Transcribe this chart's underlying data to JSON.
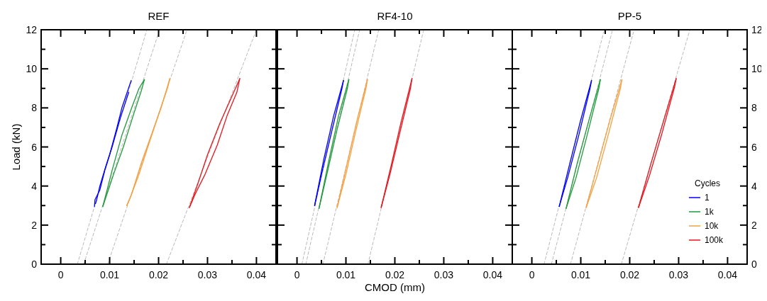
{
  "chart_data": [
    {
      "type": "line",
      "title": "REF",
      "ylabel": "Load (kN)",
      "xlim": [
        -0.004,
        0.044
      ],
      "xticks": [
        0,
        {
          "value": 0.005,
          "label": null
        },
        0.01,
        {
          "value": 0.015,
          "label": null
        },
        0.02,
        {
          "value": 0.025,
          "label": null
        },
        0.03,
        {
          "value": 0.035,
          "label": null
        },
        0.04
      ],
      "ylim": [
        0,
        12
      ],
      "yticks": [
        0,
        {
          "value": 1,
          "label": null
        },
        2,
        {
          "value": 3,
          "label": null
        },
        4,
        {
          "value": 5,
          "label": null
        },
        6,
        {
          "value": 7,
          "label": null
        },
        8,
        {
          "value": 9,
          "label": null
        },
        10,
        {
          "value": 11,
          "label": null
        },
        12
      ],
      "series": [
        {
          "color": "#a6a6a6",
          "line_style": "dashed",
          "x": [
            0.0034,
            0.0176
          ],
          "values": [
            0,
            12
          ]
        },
        {
          "color": "#a6a6a6",
          "line_style": "dashed",
          "x": [
            0.0047,
            0.0202
          ],
          "values": [
            0,
            12
          ]
        },
        {
          "color": "#a6a6a6",
          "line_style": "dashed",
          "x": [
            0.0096,
            0.0258
          ],
          "values": [
            0,
            12
          ]
        },
        {
          "color": "#a6a6a6",
          "line_style": "dashed",
          "x": [
            0.0216,
            0.04
          ],
          "values": [
            0,
            12
          ]
        },
        {
          "color": "#0000ff",
          "x": [
            0.0069,
            0.007,
            0.008,
            0.009,
            0.01,
            0.0115,
            0.0125,
            0.0144
          ],
          "values": [
            2.95,
            3.3,
            3.8,
            4.8,
            5.6,
            7,
            8,
            9.4
          ]
        },
        {
          "color": "#0000ff",
          "x": [
            0.0071,
            0.0073,
            0.008,
            0.0092,
            0.0105,
            0.0122,
            0.0139
          ],
          "values": [
            3.1,
            3.25,
            4,
            5,
            6,
            7.5,
            8.8
          ]
        },
        {
          "color": "#1f9a3a",
          "x": [
            0.0086,
            0.0105,
            0.0125,
            0.0145,
            0.016,
            0.0171
          ],
          "values": [
            2.95,
            4.8,
            6.6,
            8,
            9,
            9.45
          ]
        },
        {
          "color": "#1f9a3a",
          "x": [
            0.0086,
            0.0088,
            0.0108,
            0.0128,
            0.0148,
            0.0165,
            0.0171
          ],
          "values": [
            2.95,
            3.1,
            4.6,
            6,
            7.6,
            8.9,
            9.45
          ]
        },
        {
          "color": "#f7a040",
          "x": [
            0.0135,
            0.0145,
            0.0165,
            0.0185,
            0.0205,
            0.0223
          ],
          "values": [
            3,
            3.6,
            5.2,
            6.6,
            8,
            9.5
          ]
        },
        {
          "color": "#f7a040",
          "x": [
            0.0135,
            0.0142,
            0.016,
            0.0178,
            0.0198,
            0.0218,
            0.0223
          ],
          "values": [
            3,
            3.4,
            4.6,
            6,
            7.5,
            9,
            9.5
          ]
        },
        {
          "color": "#e8141c",
          "x": [
            0.0263,
            0.028,
            0.03,
            0.0325,
            0.035,
            0.0366
          ],
          "values": [
            2.9,
            4.1,
            5.6,
            7.2,
            8.6,
            9.5
          ]
        },
        {
          "color": "#e8141c",
          "x": [
            0.0263,
            0.0275,
            0.0295,
            0.032,
            0.034,
            0.036,
            0.0366
          ],
          "values": [
            2.9,
            3.6,
            4.6,
            6.1,
            7.6,
            8.8,
            9.5
          ]
        }
      ]
    },
    {
      "type": "line",
      "title": "RF4-10",
      "xlabel": "CMOD (mm)",
      "tick_labels": "x",
      "xlim": [
        -0.004,
        0.044
      ],
      "xticks": [
        0,
        {
          "value": 0.005,
          "label": null
        },
        0.01,
        {
          "value": 0.015,
          "label": null
        },
        0.02,
        {
          "value": 0.025,
          "label": null
        },
        0.03,
        {
          "value": 0.035,
          "label": null
        },
        0.04
      ],
      "ylim": [
        0,
        12
      ],
      "yticks": [
        0,
        {
          "value": 1,
          "label": null
        },
        2,
        {
          "value": 3,
          "label": null
        },
        4,
        {
          "value": 5,
          "label": null
        },
        6,
        {
          "value": 7,
          "label": null
        },
        8,
        {
          "value": 9,
          "label": null
        },
        10,
        {
          "value": 11,
          "label": null
        },
        12
      ],
      "series": [
        {
          "color": "#a6a6a6",
          "line_style": "dashed",
          "x": [
            0.001,
            0.0118
          ],
          "values": [
            0,
            12
          ]
        },
        {
          "color": "#a6a6a6",
          "line_style": "dashed",
          "x": [
            0.0018,
            0.0128
          ],
          "values": [
            0,
            12
          ]
        },
        {
          "color": "#a6a6a6",
          "line_style": "dashed",
          "x": [
            0.0053,
            0.0167
          ],
          "values": [
            0,
            12
          ]
        },
        {
          "color": "#a6a6a6",
          "line_style": "dashed",
          "x": [
            0.0145,
            0.0259
          ],
          "values": [
            0,
            12
          ]
        },
        {
          "color": "#0000ff",
          "x": [
            0.0036,
            0.0055,
            0.0075,
            0.0095
          ],
          "values": [
            3,
            5.4,
            7.6,
            9.4
          ]
        },
        {
          "color": "#0000ff",
          "x": [
            0.0036,
            0.0052,
            0.0072,
            0.0092,
            0.0095
          ],
          "values": [
            3,
            4.8,
            6.9,
            9,
            9.4
          ]
        },
        {
          "color": "#1f9a3a",
          "x": [
            0.0045,
            0.0065,
            0.0085,
            0.0106
          ],
          "values": [
            2.85,
            5.3,
            7.6,
            9.45
          ]
        },
        {
          "color": "#1f9a3a",
          "x": [
            0.0045,
            0.0062,
            0.0082,
            0.0103,
            0.0106
          ],
          "values": [
            2.85,
            4.7,
            6.9,
            9,
            9.45
          ]
        },
        {
          "color": "#f7a040",
          "x": [
            0.0082,
            0.0102,
            0.0122,
            0.0144
          ],
          "values": [
            2.9,
            5.1,
            7.3,
            9.45
          ]
        },
        {
          "color": "#f7a040",
          "x": [
            0.0082,
            0.01,
            0.012,
            0.0141,
            0.0144
          ],
          "values": [
            2.9,
            4.6,
            6.8,
            9,
            9.45
          ]
        },
        {
          "color": "#e8141c",
          "x": [
            0.0172,
            0.0192,
            0.0212,
            0.0235
          ],
          "values": [
            2.9,
            5,
            7.2,
            9.5
          ]
        },
        {
          "color": "#e8141c",
          "x": [
            0.0172,
            0.019,
            0.021,
            0.0232,
            0.0235
          ],
          "values": [
            2.9,
            4.6,
            6.7,
            9,
            9.5
          ]
        }
      ]
    },
    {
      "type": "line",
      "title": "PP-5",
      "legend": "bottom right",
      "legend_title": "Cycles",
      "xlim": [
        -0.004,
        0.044
      ],
      "xticks": [
        0,
        {
          "value": 0.005,
          "label": null
        },
        0.01,
        {
          "value": 0.015,
          "label": null
        },
        0.02,
        {
          "value": 0.025,
          "label": null
        },
        0.03,
        {
          "value": 0.035,
          "label": null
        },
        0.04
      ],
      "y2lim": [
        0,
        12
      ],
      "y2ticks": [
        0,
        {
          "value": 1,
          "label": null
        },
        2,
        {
          "value": 3,
          "label": null
        },
        4,
        {
          "value": 5,
          "label": null
        },
        6,
        {
          "value": 7,
          "label": null
        },
        8,
        {
          "value": 9,
          "label": null
        },
        10,
        {
          "value": 11,
          "label": null
        },
        12
      ],
      "series": [
        {
          "color": "#a6a6a6",
          "line_style": "dashed",
          "axis": "y2",
          "x": [
            0.0025,
            0.0148
          ],
          "values": [
            0,
            12
          ]
        },
        {
          "color": "#a6a6a6",
          "line_style": "dashed",
          "axis": "y2",
          "x": [
            0.004,
            0.0165
          ],
          "values": [
            0,
            12
          ]
        },
        {
          "color": "#a6a6a6",
          "line_style": "dashed",
          "axis": "y2",
          "x": [
            0.0079,
            0.0209
          ],
          "values": [
            0,
            12
          ]
        },
        {
          "color": "#a6a6a6",
          "line_style": "dashed",
          "axis": "y2",
          "x": [
            0.0183,
            0.0323
          ],
          "values": [
            0,
            12
          ]
        },
        {
          "name": "1",
          "color": "#0000ff",
          "axis": "y2",
          "x": [
            0.0056,
            0.0078,
            0.01,
            0.0122
          ],
          "values": [
            2.95,
            5.2,
            7.4,
            9.4
          ]
        },
        {
          "color": "#0000ff",
          "axis": "y2",
          "x": [
            0.0056,
            0.0074,
            0.0096,
            0.0119,
            0.0122
          ],
          "values": [
            2.95,
            4.5,
            6.6,
            9,
            9.4
          ]
        },
        {
          "name": "1k",
          "color": "#1f9a3a",
          "axis": "y2",
          "x": [
            0.007,
            0.0093,
            0.0117,
            0.014
          ],
          "values": [
            2.85,
            5.2,
            7.4,
            9.45
          ]
        },
        {
          "color": "#1f9a3a",
          "axis": "y2",
          "x": [
            0.007,
            0.009,
            0.0113,
            0.0137,
            0.014
          ],
          "values": [
            2.85,
            4.4,
            6.6,
            9,
            9.45
          ]
        },
        {
          "name": "10k",
          "color": "#f7a040",
          "axis": "y2",
          "x": [
            0.0111,
            0.0135,
            0.016,
            0.0184
          ],
          "values": [
            2.9,
            5.1,
            7.4,
            9.45
          ]
        },
        {
          "color": "#f7a040",
          "axis": "y2",
          "x": [
            0.0111,
            0.0132,
            0.0156,
            0.0181,
            0.0184
          ],
          "values": [
            2.9,
            4.4,
            6.6,
            9,
            9.45
          ]
        },
        {
          "name": "100k",
          "color": "#e8141c",
          "axis": "y2",
          "x": [
            0.0218,
            0.0244,
            0.027,
            0.0295
          ],
          "values": [
            2.9,
            5.2,
            7.4,
            9.5
          ]
        },
        {
          "color": "#e8141c",
          "axis": "y2",
          "x": [
            0.0218,
            0.024,
            0.0266,
            0.0292,
            0.0295
          ],
          "values": [
            2.9,
            4.5,
            6.7,
            9.1,
            9.5
          ]
        }
      ]
    }
  ]
}
